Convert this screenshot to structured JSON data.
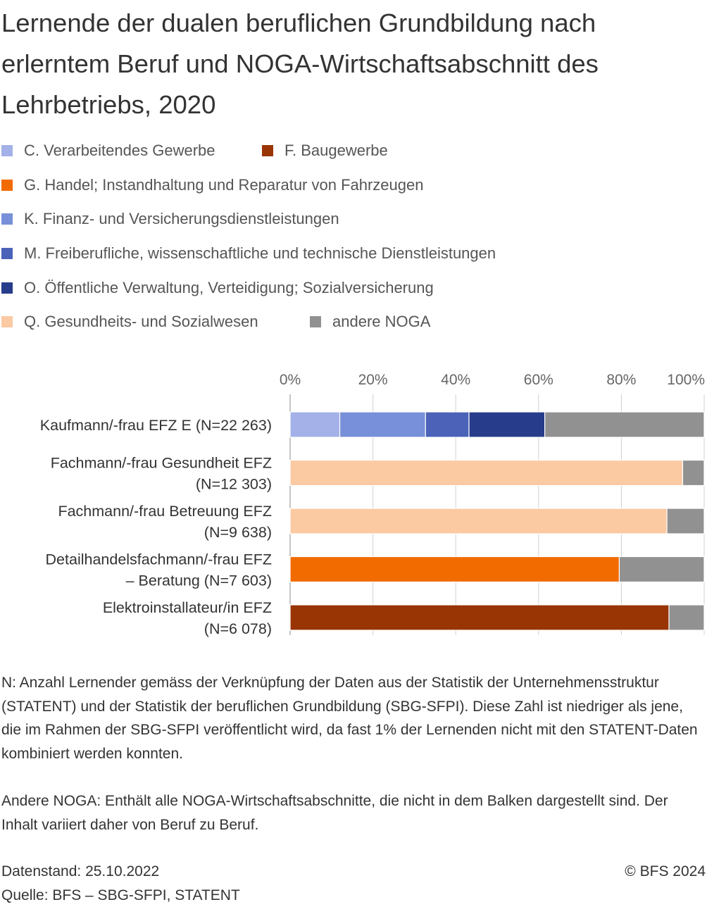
{
  "title": "Lernende der dualen beruflichen Grundbildung nach erlerntem Beruf und NOGA-Wirtschaftsabschnitt des Lehrbetriebs, 2020",
  "legend": [
    {
      "label": "C. Verarbeitendes Gewerbe",
      "color": "#a3b1e8"
    },
    {
      "label": "F. Baugewerbe",
      "color": "#993404"
    },
    {
      "label": "G. Handel; Instandhaltung und Reparatur von Fahrzeugen",
      "color": "#f26b00"
    },
    {
      "label": "K. Finanz- und Versicherungsdienstleistungen",
      "color": "#7790d9"
    },
    {
      "label": "M. Freiberufliche, wissenschaftliche und technische Dienstleistungen",
      "color": "#4b62b8"
    },
    {
      "label": "O. Öffentliche Verwaltung, Verteidigung; Sozialversicherung",
      "color": "#273c8b"
    },
    {
      "label": "Q. Gesundheits- und Sozialwesen",
      "color": "#fbc9a2"
    },
    {
      "label": "andere NOGA",
      "color": "#919191"
    }
  ],
  "chart_data": {
    "type": "bar",
    "orientation": "horizontal",
    "stacked": true,
    "xlim": [
      0,
      100
    ],
    "x_ticks": [
      "0%",
      "20%",
      "40%",
      "60%",
      "80%",
      "100%"
    ],
    "grid": true,
    "categories": [
      [
        "Kaufmann/-frau EFZ E (N=22 263)"
      ],
      [
        "Fachmann/-frau Gesundheit EFZ",
        "(N=12 303)"
      ],
      [
        "Fachmann/-frau Betreuung EFZ",
        "(N=9 638)"
      ],
      [
        "Detailhandelsfachmann/-frau EFZ",
        "– Beratung (N=7 603)"
      ],
      [
        "Elektroinstallateur/in EFZ",
        "(N=6 078)"
      ]
    ],
    "series": [
      {
        "name": "C. Verarbeitendes Gewerbe",
        "color": "#a3b1e8",
        "values": [
          12.0,
          0,
          0,
          0,
          0
        ]
      },
      {
        "name": "F. Baugewerbe",
        "color": "#993404",
        "values": [
          0,
          0,
          0,
          0,
          91.5
        ]
      },
      {
        "name": "G. Handel; Instandhaltung und Reparatur von Fahrzeugen",
        "color": "#f26b00",
        "values": [
          0,
          0,
          0,
          79.5,
          0
        ]
      },
      {
        "name": "K. Finanz- und Versicherungsdienstleistungen",
        "color": "#7790d9",
        "values": [
          20.7,
          0,
          0,
          0,
          0
        ]
      },
      {
        "name": "M. Freiberufliche, wissenschaftliche und technische Dienstleistungen",
        "color": "#4b62b8",
        "values": [
          10.5,
          0,
          0,
          0,
          0
        ]
      },
      {
        "name": "O. Öffentliche Verwaltung, Verteidigung; Sozialversicherung",
        "color": "#273c8b",
        "values": [
          18.3,
          0,
          0,
          0,
          0
        ]
      },
      {
        "name": "Q. Gesundheits- und Sozialwesen",
        "color": "#fbc9a2",
        "values": [
          0,
          94.8,
          91.0,
          0,
          0
        ]
      },
      {
        "name": "andere NOGA",
        "color": "#919191",
        "values": [
          38.5,
          5.2,
          9.0,
          20.5,
          8.5
        ]
      }
    ]
  },
  "notes": {
    "n_note": "N: Anzahl Lernender gemäss der Verknüpfung der Daten aus der Statistik der Unternehmensstruktur (STATENT) und der Statistik der beruflichen Grundbildung (SBG-SFPI). Diese Zahl ist niedriger als jene, die im Rahmen der SBG-SFPI veröffentlicht wird, da fast 1% der Lernenden nicht mit den STATENT-Daten kombiniert werden konnten.",
    "noga_note": "Andere NOGA: Enthält alle NOGA-Wirtschaftsabschnitte, die nicht in dem Balken dargestellt sind. Der Inhalt variiert daher von Beruf zu Beruf."
  },
  "footer": {
    "datenstand": "Datenstand: 25.10.2022",
    "quelle": "Quelle: BFS – SBG-SFPI, STATENT",
    "copyright": "© BFS 2024"
  }
}
